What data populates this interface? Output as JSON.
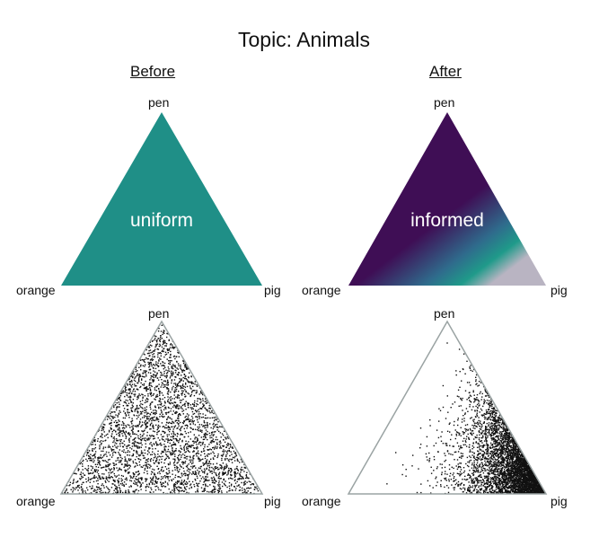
{
  "title": "Topic: Animals",
  "columns": {
    "before": "Before",
    "after": "After"
  },
  "vertices": {
    "top": "pen",
    "left": "orange",
    "right": "pig"
  },
  "panels": {
    "before_heat_label": "uniform",
    "after_heat_label": "informed"
  },
  "colors": {
    "uniform_fill": "#1f8f87",
    "informed_fill": "#3f0e55",
    "informed_mid": "#2f6b8c",
    "informed_high": "#1f9a8a",
    "informed_peak": "#b9b4c2",
    "point": "#111111",
    "outline": "#9aa3a3"
  }
}
